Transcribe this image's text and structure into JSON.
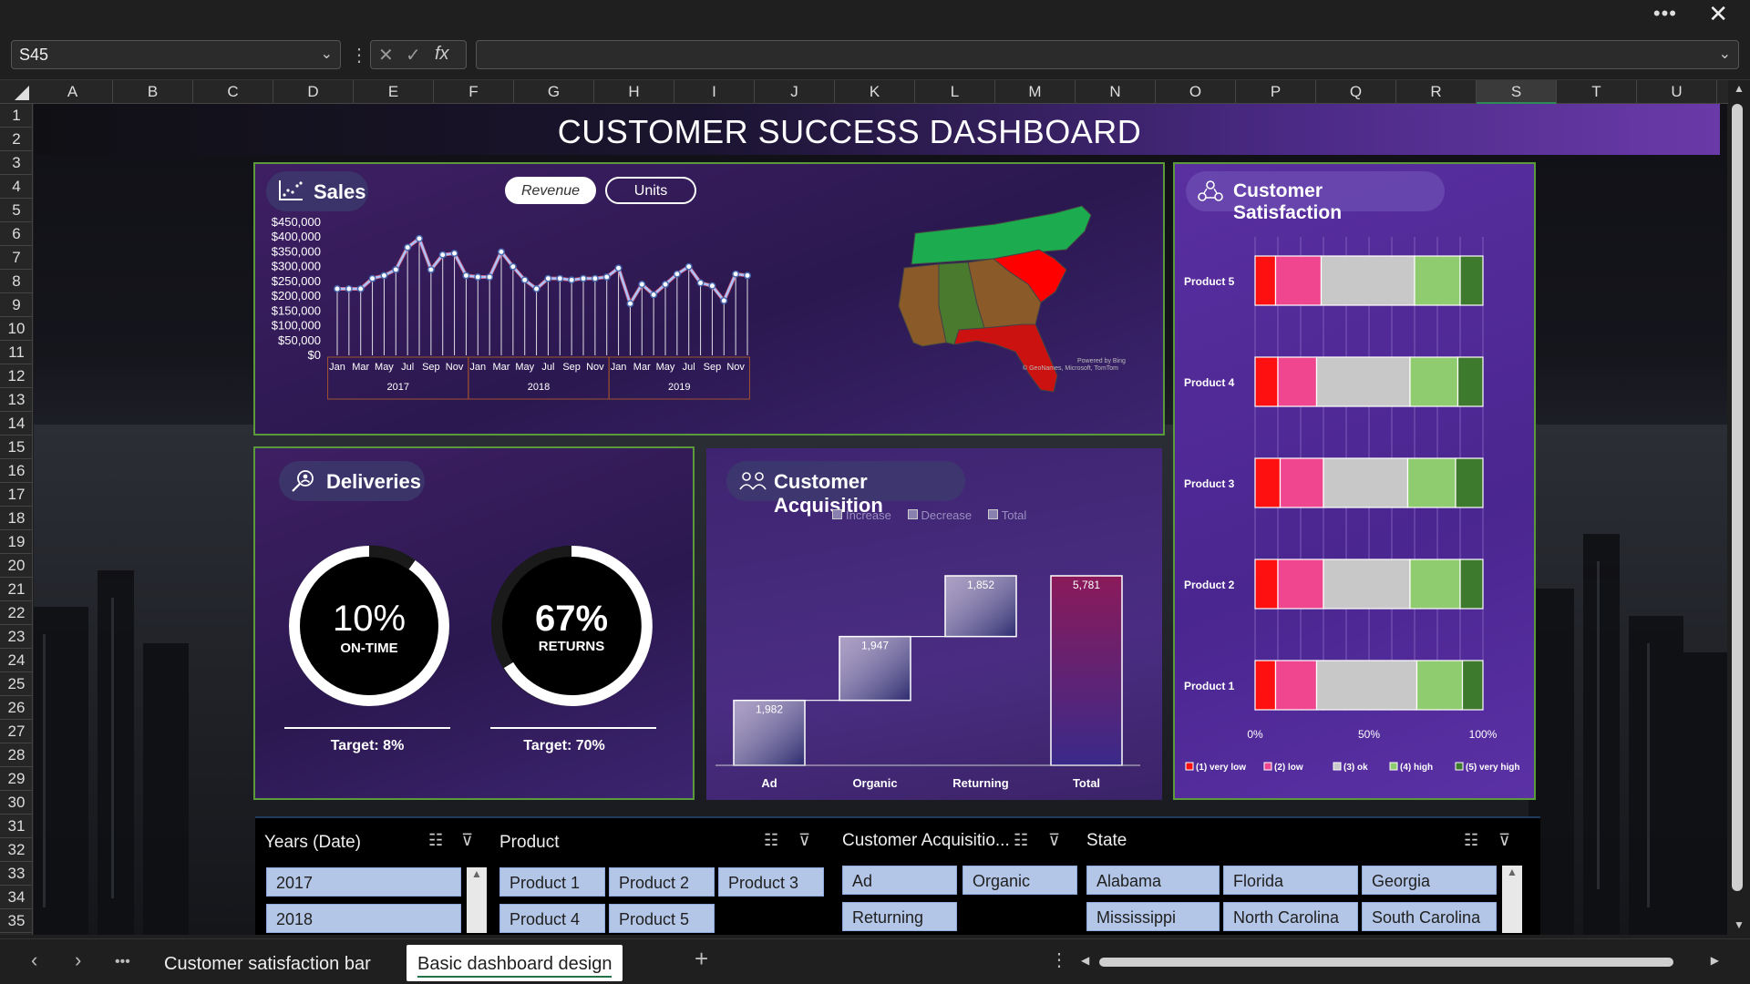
{
  "window": {
    "more_icon": "ellipsis-icon",
    "close_icon": "close-icon",
    "more": "•••",
    "close": "✕"
  },
  "formula_bar": {
    "name_box": "S45",
    "formula": "",
    "cancel": "✕",
    "enter": "✓",
    "fx": "fx"
  },
  "columns": [
    "A",
    "B",
    "C",
    "D",
    "E",
    "F",
    "G",
    "H",
    "I",
    "J",
    "K",
    "L",
    "M",
    "N",
    "O",
    "P",
    "Q",
    "R",
    "S",
    "T",
    "U"
  ],
  "selected_column": "S",
  "rows": [
    "1",
    "2",
    "3",
    "4",
    "5",
    "6",
    "7",
    "8",
    "9",
    "10",
    "11",
    "12",
    "13",
    "14",
    "15",
    "16",
    "17",
    "18",
    "19",
    "20",
    "21",
    "22",
    "23",
    "24",
    "25",
    "26",
    "27",
    "28",
    "29",
    "30",
    "31",
    "32",
    "33",
    "34",
    "35"
  ],
  "dashboard": {
    "title": "CUSTOMER SUCCESS DASHBOARD",
    "sales": {
      "label": "Sales",
      "toggle_revenue": "Revenue",
      "toggle_units": "Units",
      "map_credit_1": "Powered by Bing",
      "map_credit_2": "© GeoNames, Microsoft, TomTom"
    },
    "deliveries": {
      "label": "Deliveries",
      "ontime_value": "10%",
      "ontime_label": "ON-TIME",
      "ontime_target": "Target: 8%",
      "returns_value": "67%",
      "returns_label": "RETURNS",
      "returns_target": "Target: 70%"
    },
    "acquisition": {
      "label": "Customer Acquisition",
      "legend": [
        "Increase",
        "Decrease",
        "Total"
      ]
    },
    "satisfaction": {
      "label": "Customer Satisfaction",
      "legend": [
        "(1) very low",
        "(2) low",
        "(3) ok",
        "(4) high",
        "(5) very high"
      ]
    }
  },
  "colors": {
    "accent_purple": "#6a3aa8",
    "panel_border": "#5a9a3a",
    "slicer_item": "#b4c6e7",
    "line_blue": "#a9c4ff",
    "line_red": "#ff6b7a"
  },
  "chart_data": [
    {
      "type": "line",
      "title": "Sales",
      "ylim": [
        0,
        450000
      ],
      "y_ticks": [
        "$450,000",
        "$400,000",
        "$350,000",
        "$300,000",
        "$250,000",
        "$200,000",
        "$150,000",
        "$100,000",
        "$50,000",
        "$0"
      ],
      "x_month_labels": [
        "Jan",
        "Mar",
        "May",
        "Jul",
        "Sep",
        "Nov",
        "Jan",
        "Mar",
        "May",
        "Jul",
        "Sep",
        "Nov",
        "Jan",
        "Mar",
        "May",
        "Jul",
        "Sep",
        "Nov"
      ],
      "x_year_labels": [
        "2017",
        "2018",
        "2019"
      ],
      "series": [
        {
          "values": [
            225000,
            225000,
            225000,
            260000,
            270000,
            290000,
            365000,
            395000,
            290000,
            340000,
            345000,
            270000,
            265000,
            265000,
            350000,
            300000,
            255000,
            225000,
            260000,
            260000,
            255000,
            260000,
            260000,
            265000,
            295000,
            175000,
            240000,
            205000,
            240000,
            275000,
            300000,
            245000,
            235000,
            185000,
            275000,
            270000
          ]
        }
      ]
    },
    {
      "type": "bar",
      "title": "Customer Acquisition",
      "categories": [
        "Ad",
        "Organic",
        "Returning",
        "Total"
      ],
      "values": [
        1982,
        1947,
        1852,
        5781
      ],
      "data_labels": [
        "1,982",
        "1,947",
        "1,852",
        "5,781"
      ]
    },
    {
      "type": "bar",
      "title": "Customer Satisfaction",
      "categories": [
        "Product 5",
        "Product 4",
        "Product 3",
        "Product 2",
        "Product 1"
      ],
      "x_ticks": [
        "0%",
        "50%",
        "100%"
      ],
      "series": [
        {
          "name": "(1) very low",
          "values": [
            9,
            10,
            11,
            10,
            9
          ]
        },
        {
          "name": "(2) low",
          "values": [
            20,
            17,
            19,
            20,
            18
          ]
        },
        {
          "name": "(3) ok",
          "values": [
            41,
            41,
            37,
            38,
            44
          ]
        },
        {
          "name": "(4) high",
          "values": [
            20,
            21,
            21,
            22,
            20
          ]
        },
        {
          "name": "(5) very high",
          "values": [
            10,
            11,
            12,
            10,
            9
          ]
        }
      ]
    }
  ],
  "slicers": {
    "years": {
      "title": "Years (Date)",
      "items": [
        "2017",
        "2018"
      ]
    },
    "product": {
      "title": "Product",
      "items": [
        "Product 1",
        "Product 2",
        "Product 3",
        "Product 4",
        "Product 5"
      ]
    },
    "acquisition": {
      "title": "Customer Acquisitio...",
      "items": [
        "Ad",
        "Organic",
        "Returning"
      ]
    },
    "state": {
      "title": "State",
      "items": [
        "Alabama",
        "Florida",
        "Georgia",
        "Mississippi",
        "North Carolina",
        "South Carolina"
      ]
    }
  },
  "tabs": {
    "items": [
      "Customer satisfaction bar",
      "Basic dashboard design"
    ],
    "active": "Basic dashboard design",
    "add": "+",
    "more": "•••",
    "prev": "‹",
    "next": "›"
  }
}
